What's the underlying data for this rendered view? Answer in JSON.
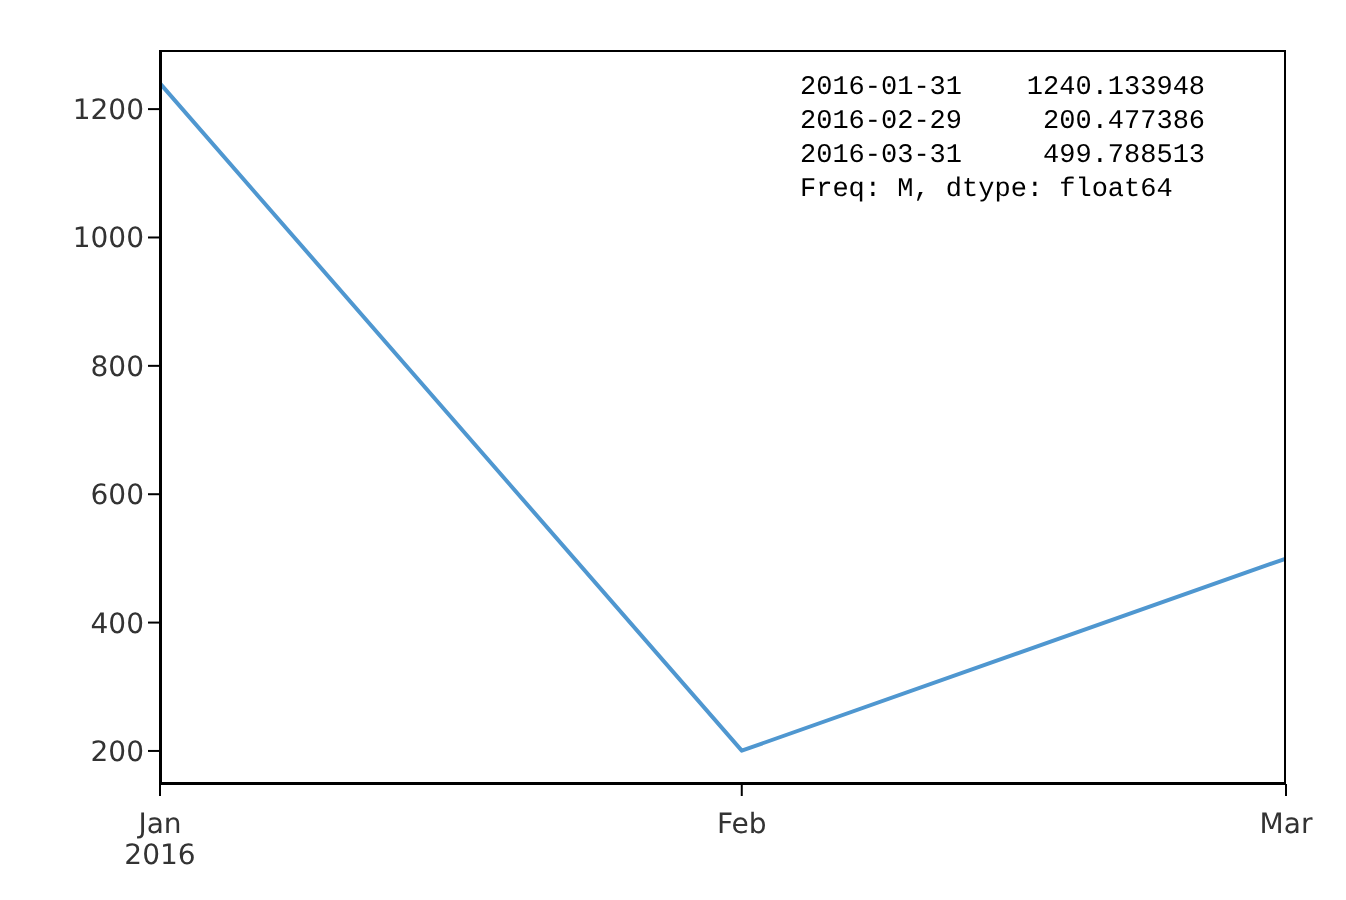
{
  "chart_data": {
    "type": "line",
    "x": [
      "2016-01",
      "2016-02",
      "2016-03"
    ],
    "values": [
      1240.133948,
      200.477386,
      499.788513
    ],
    "color": "#4f97d0",
    "xlim": [
      "2016-01",
      "2016-03"
    ],
    "xticks": [
      {
        "value": "2016-01",
        "label": "Jan\n2016"
      },
      {
        "value": "2016-02",
        "label": "Feb"
      },
      {
        "value": "2016-03",
        "label": "Mar"
      }
    ],
    "ylim": [
      148.5,
      1292.1
    ],
    "yticks": [
      200,
      400,
      600,
      800,
      1000,
      1200
    ],
    "grid": false,
    "legend": false,
    "marker": "none",
    "line_style": "solid",
    "annotations": [
      "2016-01-31    1240.133948",
      "2016-02-29     200.477386",
      "2016-03-31     499.788513",
      "Freq: M, dtype: float64"
    ]
  }
}
